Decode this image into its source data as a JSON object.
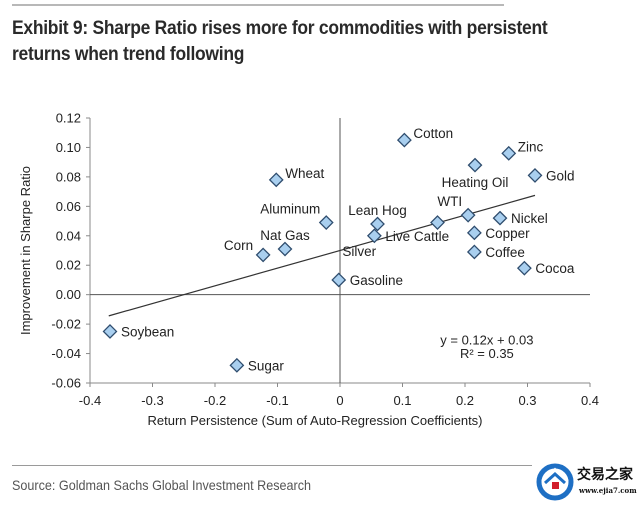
{
  "title": "Exhibit 9: Sharpe Ratio rises more for commodities with persistent returns when trend following",
  "source": "Source: Goldman Sachs Global Investment Research",
  "watermark": {
    "name": "交易之家",
    "url": "www.ejia7.com",
    "icon": "house-icon",
    "accent": "#1e6fc4",
    "door": "#d21e2a"
  },
  "colors": {
    "marker_fill": "#a9cfef",
    "marker_stroke": "#2f4d6e",
    "axis": "#8a8a8a",
    "text": "#222222",
    "trend": "#333333"
  },
  "chart_data": {
    "type": "scatter",
    "title": "Exhibit 9: Sharpe Ratio rises more for commodities with persistent returns when trend following",
    "xlabel": "Return Persistence (Sum of Auto-Regression Coefficients)",
    "ylabel": "Improvement in Sharpe Ratio",
    "xlim": [
      -0.4,
      0.4
    ],
    "ylim": [
      -0.06,
      0.12
    ],
    "xticks": [
      "-0.4",
      "-0.3",
      "-0.2",
      "-0.1",
      "0",
      "0.1",
      "0.2",
      "0.3",
      "0.4"
    ],
    "yticks": [
      "0.12",
      "0.10",
      "0.08",
      "0.06",
      "0.04",
      "0.02",
      "0.00",
      "-0.02",
      "-0.04",
      "-0.06"
    ],
    "grid": false,
    "points": [
      {
        "name": "Cotton",
        "x": 0.103,
        "y": 0.105,
        "label_pos": "right-up"
      },
      {
        "name": "Zinc",
        "x": 0.27,
        "y": 0.096,
        "label_pos": "right-up"
      },
      {
        "name": "Heating Oil",
        "x": 0.216,
        "y": 0.088,
        "label_pos": "below"
      },
      {
        "name": "Gold",
        "x": 0.312,
        "y": 0.081,
        "label_pos": "right"
      },
      {
        "name": "Wheat",
        "x": -0.102,
        "y": 0.078,
        "label_pos": "right-up"
      },
      {
        "name": "Aluminum",
        "x": -0.022,
        "y": 0.049,
        "label_pos": "above-left"
      },
      {
        "name": "Lean Hog",
        "x": 0.06,
        "y": 0.048,
        "label_pos": "above"
      },
      {
        "name": "",
        "x": 0.156,
        "y": 0.049,
        "label_pos": "none"
      },
      {
        "name": "WTI",
        "x": 0.205,
        "y": 0.054,
        "label_pos": "above-left"
      },
      {
        "name": "Nickel",
        "x": 0.256,
        "y": 0.052,
        "label_pos": "right"
      },
      {
        "name": "Live Cattle",
        "x": 0.055,
        "y": 0.04,
        "label_pos": "right"
      },
      {
        "name": "Silver",
        "x": 0.055,
        "y": 0.04,
        "label_pos": "below-left"
      },
      {
        "name": "Copper",
        "x": 0.215,
        "y": 0.042,
        "label_pos": "right"
      },
      {
        "name": "Nat Gas",
        "x": -0.088,
        "y": 0.031,
        "label_pos": "above"
      },
      {
        "name": "Corn",
        "x": -0.123,
        "y": 0.027,
        "label_pos": "left-up"
      },
      {
        "name": "Coffee",
        "x": 0.215,
        "y": 0.029,
        "label_pos": "right"
      },
      {
        "name": "Cocoa",
        "x": 0.295,
        "y": 0.018,
        "label_pos": "right"
      },
      {
        "name": "Gasoline",
        "x": -0.002,
        "y": 0.01,
        "label_pos": "right"
      },
      {
        "name": "Soybean",
        "x": -0.368,
        "y": -0.025,
        "label_pos": "right"
      },
      {
        "name": "Sugar",
        "x": -0.165,
        "y": -0.048,
        "label_pos": "right"
      }
    ],
    "trendline": {
      "slope": 0.12,
      "intercept": 0.03,
      "x_range": [
        -0.37,
        0.312
      ]
    },
    "annotations": [
      "y = 0.12x + 0.03",
      "R² = 0.35"
    ]
  }
}
